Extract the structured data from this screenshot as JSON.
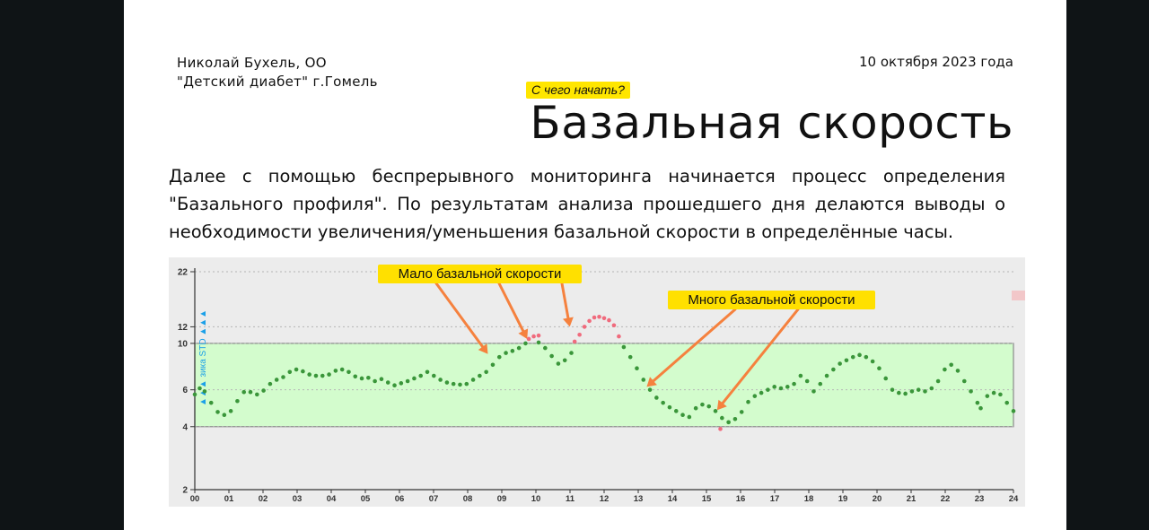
{
  "header": {
    "author_line1": "Николай Бухель, ОО",
    "author_line2": "\"Детский диабет\" г.Гомель",
    "date": "10 октября 2023 года",
    "badge": "С чего начать?",
    "title": "Базальная скорость"
  },
  "paragraph": "Далее с помощью беспрерывного мониторинга начинается процесс определения \"Базального профиля\". По результатам анализа прошедшего дня делаются выводы о необходимости увеличения/уменьшения базальной скорости в определённые часы.",
  "colors": {
    "background": "#0f1416",
    "target_band": "#d3fccd",
    "in_range_point": "#3a963a",
    "high_point": "#f06b7d",
    "low_point": "#f06b7d",
    "arrow": "#f5813e",
    "label_bg": "#ffe000",
    "side_label": "#1ba0e8"
  },
  "chart_data": {
    "type": "scatter",
    "y_scale": "log",
    "ylim": [
      2,
      22
    ],
    "xlim": [
      0,
      24
    ],
    "y_ticks": [
      "2",
      "4",
      "6",
      "10",
      "12",
      "22"
    ],
    "x_ticks": [
      "00",
      "01",
      "02",
      "03",
      "04",
      "05",
      "06",
      "07",
      "08",
      "09",
      "10",
      "11",
      "12",
      "13",
      "14",
      "15",
      "16",
      "17",
      "18",
      "19",
      "20",
      "21",
      "22",
      "23",
      "24"
    ],
    "target_range": [
      4,
      10
    ],
    "side_label": "▲▲▲ зика STD ▲▲▲",
    "series": [
      {
        "points": [
          [
            0.0,
            5.7
          ],
          [
            0.15,
            6.1
          ],
          [
            0.3,
            5.9
          ],
          [
            0.5,
            5.2
          ],
          [
            0.7,
            4.7
          ],
          [
            0.9,
            4.55
          ],
          [
            1.1,
            4.75
          ],
          [
            1.3,
            5.3
          ],
          [
            1.5,
            5.85
          ],
          [
            1.7,
            5.85
          ],
          [
            1.9,
            5.7
          ],
          [
            2.1,
            5.95
          ],
          [
            2.3,
            6.4
          ],
          [
            2.5,
            6.7
          ],
          [
            2.7,
            6.9
          ],
          [
            2.9,
            7.3
          ],
          [
            3.1,
            7.5
          ],
          [
            3.3,
            7.35
          ],
          [
            3.5,
            7.1
          ],
          [
            3.7,
            7.0
          ],
          [
            3.9,
            7.0
          ],
          [
            4.1,
            7.1
          ],
          [
            4.3,
            7.4
          ],
          [
            4.5,
            7.5
          ],
          [
            4.7,
            7.3
          ],
          [
            4.9,
            6.95
          ],
          [
            5.1,
            6.8
          ],
          [
            5.3,
            6.85
          ],
          [
            5.5,
            6.6
          ],
          [
            5.7,
            6.75
          ],
          [
            5.9,
            6.5
          ],
          [
            6.1,
            6.3
          ],
          [
            6.3,
            6.45
          ],
          [
            6.5,
            6.6
          ],
          [
            6.7,
            6.8
          ],
          [
            6.9,
            7.0
          ],
          [
            7.1,
            7.3
          ],
          [
            7.3,
            7.0
          ],
          [
            7.5,
            6.7
          ],
          [
            7.7,
            6.5
          ],
          [
            7.9,
            6.4
          ],
          [
            8.1,
            6.35
          ],
          [
            8.3,
            6.4
          ],
          [
            8.5,
            6.7
          ],
          [
            8.7,
            7.0
          ],
          [
            8.9,
            7.3
          ],
          [
            9.1,
            7.9
          ],
          [
            9.3,
            8.6
          ],
          [
            9.5,
            9.0
          ],
          [
            9.7,
            9.2
          ],
          [
            9.9,
            9.5
          ],
          [
            10.1,
            10.0
          ],
          [
            10.5,
            10.1
          ],
          [
            10.7,
            9.5
          ],
          [
            10.9,
            8.7
          ],
          [
            11.1,
            8.0
          ],
          [
            11.3,
            8.3
          ],
          [
            11.5,
            9.0
          ],
          [
            13.1,
            9.6
          ],
          [
            13.3,
            8.6
          ],
          [
            13.5,
            7.6
          ],
          [
            13.7,
            6.7
          ],
          [
            13.9,
            6.0
          ],
          [
            14.1,
            5.5
          ],
          [
            14.3,
            5.2
          ],
          [
            14.5,
            4.95
          ],
          [
            14.7,
            4.75
          ],
          [
            14.9,
            4.55
          ],
          [
            15.1,
            4.45
          ],
          [
            15.3,
            4.9
          ],
          [
            15.5,
            5.1
          ],
          [
            15.7,
            5.0
          ],
          [
            15.9,
            4.75
          ],
          [
            16.1,
            4.4
          ],
          [
            16.3,
            4.2
          ],
          [
            16.5,
            4.35
          ],
          [
            16.7,
            4.7
          ],
          [
            16.9,
            5.25
          ],
          [
            17.1,
            5.6
          ],
          [
            17.3,
            5.8
          ],
          [
            17.5,
            6.0
          ],
          [
            17.7,
            6.2
          ],
          [
            17.9,
            6.1
          ],
          [
            18.1,
            6.2
          ],
          [
            18.3,
            6.4
          ],
          [
            18.5,
            7.0
          ],
          [
            18.7,
            6.6
          ],
          [
            18.9,
            5.9
          ],
          [
            19.1,
            6.4
          ],
          [
            19.3,
            7.0
          ],
          [
            19.5,
            7.5
          ],
          [
            19.7,
            8.0
          ],
          [
            19.9,
            8.3
          ],
          [
            20.1,
            8.6
          ],
          [
            20.3,
            8.8
          ],
          [
            20.5,
            8.6
          ],
          [
            20.7,
            8.2
          ],
          [
            20.9,
            7.6
          ],
          [
            21.1,
            6.8
          ],
          [
            21.3,
            6.0
          ],
          [
            21.5,
            5.8
          ],
          [
            21.7,
            5.75
          ],
          [
            21.9,
            5.9
          ],
          [
            22.1,
            6.0
          ],
          [
            22.3,
            5.9
          ],
          [
            22.5,
            6.1
          ],
          [
            22.7,
            6.6
          ],
          [
            22.9,
            7.5
          ],
          [
            23.1,
            7.9
          ],
          [
            23.3,
            7.4
          ],
          [
            23.5,
            6.6
          ],
          [
            23.7,
            5.9
          ],
          [
            23.9,
            5.2
          ],
          [
            24.0,
            4.9
          ],
          [
            24.2,
            5.6
          ],
          [
            24.4,
            5.8
          ],
          [
            24.6,
            5.7
          ],
          [
            24.8,
            5.2
          ],
          [
            25.0,
            4.75
          ]
        ]
      },
      {
        "points": [
          [
            10.2,
            10.5
          ],
          [
            10.35,
            10.8
          ],
          [
            10.5,
            10.9
          ],
          [
            11.6,
            10.2
          ],
          [
            11.75,
            11.0
          ],
          [
            11.9,
            12.0
          ],
          [
            12.05,
            12.8
          ],
          [
            12.2,
            13.3
          ],
          [
            12.35,
            13.4
          ],
          [
            12.5,
            13.2
          ],
          [
            12.65,
            12.9
          ],
          [
            12.8,
            12.2
          ],
          [
            12.95,
            10.8
          ]
        ]
      },
      {
        "points": [
          [
            16.05,
            3.9
          ]
        ]
      }
    ],
    "annotations": [
      {
        "text": "Мало базальной скорости",
        "targets": [
          [
            8.95,
            8.9
          ],
          [
            10.15,
            10.5
          ],
          [
            11.45,
            12.0
          ]
        ]
      },
      {
        "text": "Много базальной скорости",
        "targets": [
          [
            13.8,
            6.2
          ],
          [
            15.95,
            4.8
          ]
        ]
      }
    ]
  }
}
